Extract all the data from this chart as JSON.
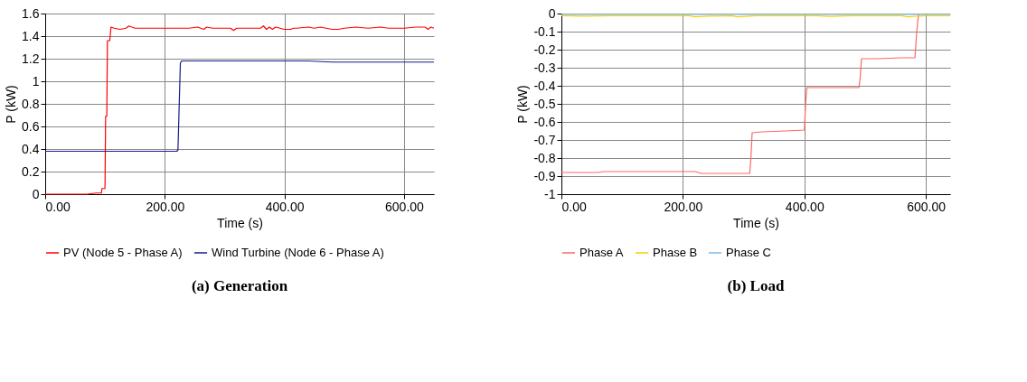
{
  "chart_data": [
    {
      "type": "line",
      "title": "(a) Generation",
      "xlabel": "Time (s)",
      "ylabel": "P (kW)",
      "xlim": [
        0,
        650
      ],
      "ylim": [
        0,
        1.6
      ],
      "xticks": [
        {
          "value": 0,
          "label": "0.00"
        },
        {
          "value": 200,
          "label": "200.00"
        },
        {
          "value": 400,
          "label": "400.00"
        },
        {
          "value": 600,
          "label": "600.00"
        }
      ],
      "yticks": [
        0,
        0.2,
        0.4,
        0.6,
        0.8,
        1,
        1.2,
        1.4,
        1.6
      ],
      "grid": true,
      "legend": "bottom",
      "marker": "none",
      "line_style": "solid",
      "series": [
        {
          "name": "PV (Node 5 - Phase A)",
          "color": "#ff0000",
          "x": [
            0,
            20,
            40,
            60,
            70,
            85,
            94,
            95,
            100,
            101,
            103,
            104,
            108,
            110,
            115,
            125,
            135,
            140,
            150,
            160,
            180,
            200,
            220,
            240,
            255,
            265,
            270,
            280,
            300,
            310,
            315,
            320,
            340,
            360,
            365,
            370,
            375,
            380,
            385,
            400,
            410,
            415,
            420,
            440,
            450,
            460,
            480,
            490,
            500,
            520,
            540,
            560,
            575,
            580,
            600,
            620,
            635,
            640,
            645,
            650
          ],
          "values": [
            0,
            0,
            0,
            0,
            0,
            0.01,
            0.01,
            0.05,
            0.05,
            0.69,
            0.69,
            1.36,
            1.36,
            1.48,
            1.47,
            1.46,
            1.47,
            1.49,
            1.47,
            1.47,
            1.47,
            1.47,
            1.47,
            1.47,
            1.48,
            1.46,
            1.48,
            1.47,
            1.47,
            1.47,
            1.45,
            1.47,
            1.47,
            1.47,
            1.49,
            1.46,
            1.48,
            1.46,
            1.48,
            1.46,
            1.46,
            1.47,
            1.47,
            1.48,
            1.47,
            1.48,
            1.46,
            1.46,
            1.47,
            1.48,
            1.47,
            1.48,
            1.47,
            1.47,
            1.47,
            1.48,
            1.48,
            1.46,
            1.48,
            1.47
          ]
        },
        {
          "name": "Wind Turbine (Node 6 - Phase A)",
          "color": "#1a1a8c",
          "x": [
            0,
            20,
            40,
            80,
            120,
            160,
            200,
            220,
            222,
            226,
            228,
            240,
            280,
            320,
            360,
            400,
            440,
            480,
            520,
            560,
            600,
            640,
            650
          ],
          "values": [
            0.38,
            0.38,
            0.38,
            0.38,
            0.38,
            0.38,
            0.38,
            0.38,
            0.39,
            1.16,
            1.18,
            1.18,
            1.18,
            1.18,
            1.18,
            1.18,
            1.18,
            1.17,
            1.17,
            1.17,
            1.17,
            1.17,
            1.17
          ]
        }
      ]
    },
    {
      "type": "line",
      "title": "(b) Load",
      "xlabel": "Time (s)",
      "ylabel": "P (kW)",
      "xlim": [
        0,
        640
      ],
      "ylim": [
        -1,
        0
      ],
      "xticks": [
        {
          "value": 0,
          "label": "0.00"
        },
        {
          "value": 200,
          "label": "200.00"
        },
        {
          "value": 400,
          "label": "400.00"
        },
        {
          "value": 600,
          "label": "600.00"
        }
      ],
      "yticks": [
        -1,
        -0.9,
        -0.8,
        -0.7,
        -0.6,
        -0.5,
        -0.4,
        -0.3,
        -0.2,
        -0.1,
        0
      ],
      "grid": true,
      "legend": "bottom",
      "marker": "none",
      "line_style": "solid",
      "series": [
        {
          "name": "Phase A",
          "color": "#ff6666",
          "x": [
            0,
            30,
            60,
            70,
            120,
            180,
            220,
            230,
            260,
            300,
            310,
            312,
            314,
            330,
            370,
            400,
            402,
            404,
            420,
            460,
            490,
            492,
            494,
            520,
            560,
            582,
            585,
            588
          ],
          "values": [
            -0.88,
            -0.88,
            -0.88,
            -0.875,
            -0.875,
            -0.875,
            -0.875,
            -0.885,
            -0.885,
            -0.885,
            -0.885,
            -0.8,
            -0.66,
            -0.655,
            -0.65,
            -0.645,
            -0.5,
            -0.41,
            -0.41,
            -0.41,
            -0.41,
            -0.35,
            -0.25,
            -0.25,
            -0.245,
            -0.245,
            -0.1,
            -0.002
          ]
        },
        {
          "name": "Phase B",
          "color": "#ffcc00",
          "x": [
            0,
            40,
            80,
            160,
            210,
            220,
            240,
            280,
            290,
            320,
            360,
            420,
            440,
            480,
            520,
            560,
            570,
            600,
            640
          ],
          "values": [
            -0.012,
            -0.014,
            -0.012,
            -0.012,
            -0.012,
            -0.018,
            -0.014,
            -0.012,
            -0.018,
            -0.012,
            -0.012,
            -0.012,
            -0.016,
            -0.012,
            -0.012,
            -0.012,
            -0.018,
            -0.012,
            -0.012
          ]
        },
        {
          "name": "Phase C",
          "color": "#77bbee",
          "x": [
            0,
            60,
            120,
            180,
            240,
            300,
            360,
            400,
            460,
            520,
            580,
            640
          ],
          "values": [
            -0.004,
            -0.004,
            -0.004,
            -0.004,
            -0.004,
            -0.004,
            -0.004,
            -0.004,
            -0.004,
            -0.004,
            -0.004,
            -0.004
          ]
        }
      ]
    }
  ]
}
